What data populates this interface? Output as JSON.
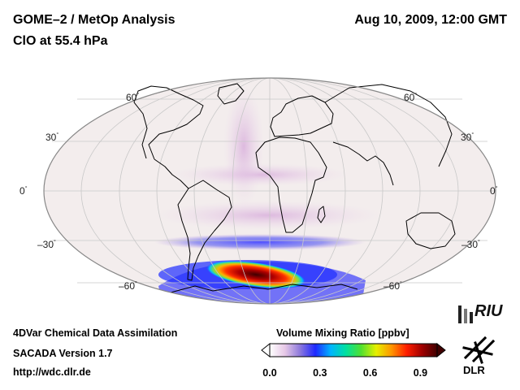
{
  "header": {
    "title": "GOME–2 / MetOp Analysis",
    "subtitle": "ClO at 55.4 hPa",
    "datetime": "Aug 10, 2009, 12:00 GMT"
  },
  "map": {
    "projection": "Mollweide (Atlantic centered)",
    "lat_labels_left": [
      "60",
      "30",
      "0",
      "–30",
      "–60"
    ],
    "lat_labels_right": [
      "60",
      "30",
      "0",
      "–30",
      "–60"
    ],
    "degree_symbol": "°",
    "colors": {
      "ocean": "#f3eded",
      "grid": "#c8c8c8",
      "coast": "#000000",
      "outline": "#888888"
    }
  },
  "colorbar": {
    "title": "Volume Mixing Ratio [ppbv]",
    "ticks": [
      "0.0",
      "0.3",
      "0.6",
      "0.9"
    ],
    "tick_values": [
      0.0,
      0.3,
      0.6,
      0.9
    ],
    "range": [
      0.0,
      1.0
    ],
    "stops": [
      "#ffffff",
      "#e6c8e6",
      "#8c78dc",
      "#1e28ff",
      "#00b4ff",
      "#00e0a0",
      "#50e030",
      "#e6f000",
      "#ff9600",
      "#ff1e00",
      "#a00000",
      "#400000"
    ]
  },
  "footer": {
    "line1": "4DVar Chemical Data Assimilation",
    "line2": "SACADA Version 1.7",
    "line3": "http://wdc.dlr.de"
  },
  "logos": {
    "riu": "RIU",
    "dlr": "DLR"
  }
}
